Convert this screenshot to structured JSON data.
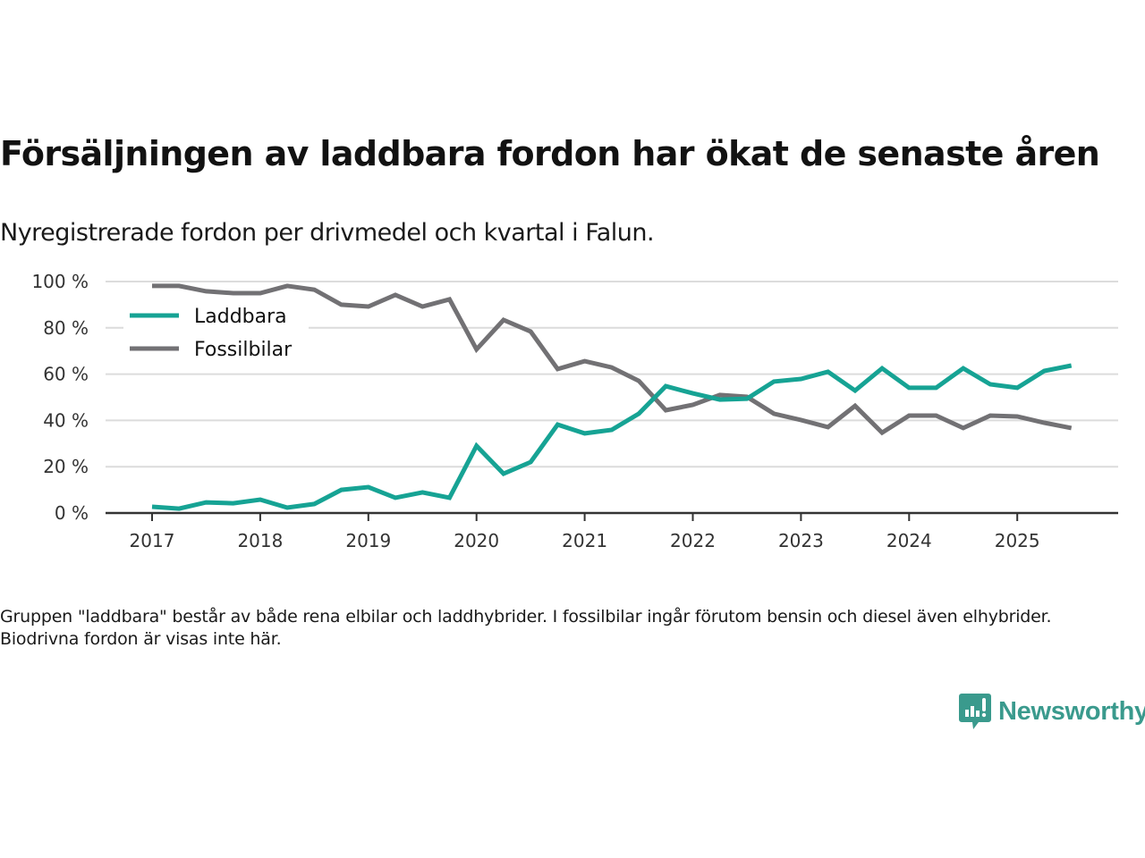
{
  "header": {
    "title": "Försäljningen av laddbara fordon har ökat de senaste åren",
    "subtitle": "Nyregistrerade fordon per drivmedel och kvartal i Falun."
  },
  "note": "Gruppen \"laddbara\" består av både rena elbilar och laddhybrider. I fossilbilar ingår förutom bensin och diesel även elhybrider. Biodrivna fordon är visas inte här.",
  "brand": {
    "name": "Newsworthy",
    "color": "#3a9a8d"
  },
  "chart_data": {
    "type": "line",
    "title": "Försäljningen av laddbara fordon har ökat de senaste åren",
    "subtitle": "Nyregistrerade fordon per drivmedel och kvartal i Falun.",
    "xlabel": "",
    "ylabel": "",
    "ylim": [
      0,
      100
    ],
    "yticks": [
      0,
      20,
      40,
      60,
      80,
      100
    ],
    "ytick_labels": [
      "0 %",
      "20 %",
      "40 %",
      "60 %",
      "80 %",
      "100 %"
    ],
    "xticks": [
      2017,
      2018,
      2019,
      2020,
      2021,
      2022,
      2023,
      2024,
      2025
    ],
    "xtick_labels": [
      "2017",
      "2018",
      "2019",
      "2020",
      "2021",
      "2022",
      "2023",
      "2024",
      "2025"
    ],
    "xlim": [
      2016.6,
      2026.0
    ],
    "grid": "horizontal",
    "legend_position": "top-left",
    "x": [
      2017.0,
      2017.25,
      2017.5,
      2017.75,
      2018.0,
      2018.25,
      2018.5,
      2018.75,
      2019.0,
      2019.25,
      2019.5,
      2019.75,
      2020.0,
      2020.25,
      2020.5,
      2020.75,
      2021.0,
      2021.25,
      2021.5,
      2021.75,
      2022.0,
      2022.25,
      2022.5,
      2022.75,
      2023.0,
      2023.25,
      2023.5,
      2023.75,
      2024.0,
      2024.25,
      2024.5,
      2024.75,
      2025.0,
      2025.25,
      2025.5
    ],
    "series": [
      {
        "name": "Laddbara",
        "color": "#16a394",
        "values": [
          2.7,
          1.9,
          4.6,
          4.2,
          5.8,
          2.3,
          3.9,
          10.0,
          11.2,
          6.6,
          8.9,
          6.6,
          29.0,
          17.0,
          22.0,
          38.2,
          34.4,
          35.9,
          42.9,
          54.8,
          51.7,
          49.0,
          49.4,
          56.8,
          57.9,
          61.0,
          52.9,
          62.5,
          54.1,
          54.1,
          62.5,
          55.6,
          54.1,
          61.4,
          63.7
        ]
      },
      {
        "name": "Fossilbilar",
        "color": "#727174",
        "values": [
          98.1,
          98.1,
          95.8,
          95.0,
          95.0,
          98.1,
          96.5,
          90.0,
          89.2,
          94.2,
          89.2,
          92.3,
          70.7,
          83.4,
          78.4,
          62.2,
          65.6,
          62.9,
          57.1,
          44.4,
          46.7,
          51.0,
          50.2,
          42.9,
          40.2,
          37.1,
          46.3,
          34.7,
          42.1,
          42.1,
          36.7,
          42.1,
          41.7,
          39.0,
          36.7
        ]
      }
    ]
  }
}
